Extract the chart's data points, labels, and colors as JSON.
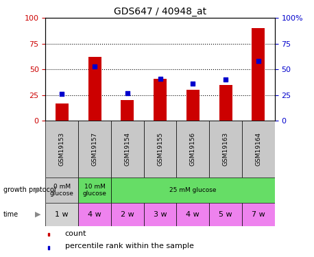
{
  "title": "GDS647 / 40948_at",
  "samples": [
    "GSM19153",
    "GSM19157",
    "GSM19154",
    "GSM19155",
    "GSM19156",
    "GSM19163",
    "GSM19164"
  ],
  "count_values": [
    17,
    62,
    20,
    41,
    30,
    35,
    90
  ],
  "percentile_values": [
    26,
    53,
    27,
    41,
    36,
    40,
    58
  ],
  "bar_color": "#cc0000",
  "dot_color": "#0000cc",
  "yticks": [
    0,
    25,
    50,
    75,
    100
  ],
  "ylim": [
    0,
    100
  ],
  "gp_data": [
    {
      "start": 0,
      "end": 1,
      "color": "#c8c8c8",
      "label": "0 mM\nglucose"
    },
    {
      "start": 1,
      "end": 2,
      "color": "#66dd66",
      "label": "10 mM\nglucose"
    },
    {
      "start": 2,
      "end": 7,
      "color": "#66dd66",
      "label": "25 mM glucose"
    }
  ],
  "time_labels": [
    "1 w",
    "4 w",
    "2 w",
    "3 w",
    "4 w",
    "5 w",
    "7 w"
  ],
  "time_colors": [
    "#d3d3d3",
    "#ee82ee",
    "#ee82ee",
    "#ee82ee",
    "#ee82ee",
    "#ee82ee",
    "#ee82ee"
  ],
  "sample_bg_color": "#c8c8c8",
  "legend_count_label": "count",
  "legend_pct_label": "percentile rank within the sample",
  "left_axis_color": "#cc0000",
  "right_axis_color": "#0000cc",
  "gp_label": "growth protocol",
  "time_label": "time",
  "arrow_color": "#888888"
}
